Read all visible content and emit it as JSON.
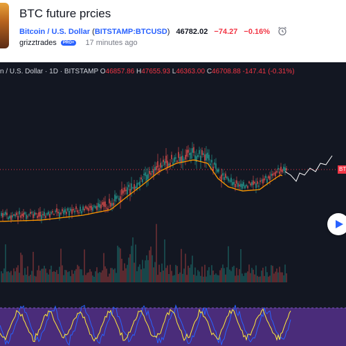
{
  "idea": {
    "title": "BTC future prcies",
    "symbol_name": "Bitcoin / U.S. Dollar",
    "ticker": "BITSTAMP:BTCUSD",
    "price": "46782.02",
    "change": "−74.27",
    "change_pct": "−0.16%",
    "author": "grizztrades",
    "badge": "PRO+",
    "time_ago": "17 minutes ago"
  },
  "legend": {
    "symbol": "n / U.S. Dollar",
    "interval": "1D",
    "exchange": "BITSTAMP",
    "o_label": "O",
    "o": "46857.86",
    "h_label": "H",
    "h": "47655.93",
    "l_label": "L",
    "l": "46363.00",
    "c_label": "C",
    "c": "46708.88",
    "chg": "-147.41 (-0.31%)"
  },
  "price_tag": "BTC",
  "colors": {
    "up": "#26a69a",
    "down": "#ef5350",
    "ma": "#ff9800",
    "projection": "#ffffff",
    "price_line": "#f23645",
    "osc_fast": "#2962ff",
    "osc_slow": "#ffeb3b",
    "osc_band": "#4a2c7a"
  },
  "icons": {
    "alarm": "alarm-clock-icon",
    "play": "play-icon"
  }
}
